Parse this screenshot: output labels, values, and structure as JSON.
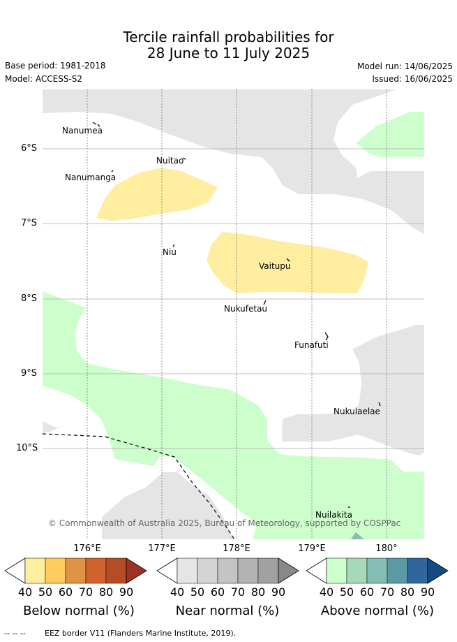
{
  "header": {
    "title_line1": "Tercile rainfall probabilities for",
    "title_line2": "28 June to 11 July 2025",
    "base_period": "Base period: 1981-2018",
    "model": "Model: ACCESS-S2",
    "model_run": "Model run: 14/06/2025",
    "issued": "Issued: 16/06/2025"
  },
  "map": {
    "latitude_labels": [
      "6°S",
      "7°S",
      "8°S",
      "9°S",
      "10°S"
    ],
    "longitude_labels": [
      "176°E",
      "177°E",
      "178°E",
      "179°E",
      "180°"
    ],
    "islands": [
      {
        "name": "Nanumea"
      },
      {
        "name": "Nuitao"
      },
      {
        "name": "Nanumanga"
      },
      {
        "name": "Niu"
      },
      {
        "name": "Vaitupu"
      },
      {
        "name": "Nukufetau"
      },
      {
        "name": "Funafuti"
      },
      {
        "name": "Nukulaelae"
      },
      {
        "name": "Nuilakita"
      }
    ],
    "colors": {
      "below_50": "#ffeda0",
      "near_50": "#e5e5e5",
      "above_50": "#ccffcc",
      "above_60": "#83bdb3"
    },
    "copyright": "© Commonwealth of Australia 2025, Bureau of Meteorology, supported by COSPPac"
  },
  "colorbars": [
    {
      "title": "Below normal (%)",
      "ticks": [
        "40",
        "50",
        "60",
        "70",
        "80",
        "90"
      ],
      "colors": [
        "#ffeda0",
        "#fecc5c",
        "#e19345",
        "#d1622d",
        "#b54c27",
        "#9e3325"
      ]
    },
    {
      "title": "Near normal (%)",
      "ticks": [
        "40",
        "50",
        "60",
        "70",
        "80",
        "90"
      ],
      "colors": [
        "#e5e5e5",
        "#d4d4d4",
        "#c4c4c4",
        "#b2b2b2",
        "#a1a1a1",
        "#888888"
      ]
    },
    {
      "title": "Above normal (%)",
      "ticks": [
        "40",
        "50",
        "60",
        "70",
        "80",
        "90"
      ],
      "colors": [
        "#ccffcc",
        "#a6d9b9",
        "#83bdb3",
        "#5b9aa3",
        "#31669c",
        "#164b82"
      ]
    }
  ],
  "footer": {
    "eez_legend_symbol": "-- -- --",
    "eez_legend": "EEZ border V11 (Flanders Marine Institute, 2019)."
  }
}
